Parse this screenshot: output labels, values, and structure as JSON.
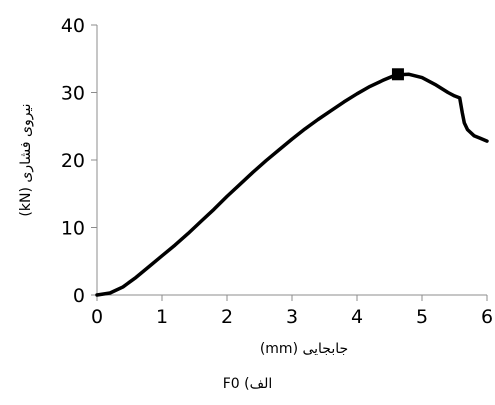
{
  "chart_data": {
    "type": "line",
    "title": "",
    "xlabel": "جابجایی (mm)",
    "ylabel": "نیروی فشاری (kN)",
    "xlim": [
      0,
      6
    ],
    "ylim": [
      0,
      40
    ],
    "x_ticks": [
      "0",
      "1",
      "2",
      "3",
      "4",
      "5",
      "6"
    ],
    "y_ticks": [
      "0",
      "10",
      "20",
      "30",
      "40"
    ],
    "grid": false,
    "legend": "none",
    "series": [
      {
        "color": "#000000",
        "x": [
          0,
          0.2,
          0.4,
          0.6,
          0.8,
          1.0,
          1.2,
          1.4,
          1.6,
          1.8,
          2.0,
          2.2,
          2.4,
          2.6,
          2.8,
          3.0,
          3.2,
          3.4,
          3.6,
          3.8,
          4.0,
          4.2,
          4.4,
          4.6,
          4.8,
          5.0,
          5.2,
          5.4,
          5.5,
          5.58,
          5.62,
          5.65,
          5.7,
          5.8,
          5.9,
          6.0
        ],
        "y": [
          0,
          0.3,
          1.2,
          2.6,
          4.2,
          5.8,
          7.4,
          9.1,
          10.9,
          12.7,
          14.6,
          16.4,
          18.2,
          19.9,
          21.5,
          23.1,
          24.6,
          26.0,
          27.3,
          28.6,
          29.8,
          30.9,
          31.8,
          32.6,
          32.7,
          32.2,
          31.2,
          30.0,
          29.5,
          29.2,
          27.0,
          25.5,
          24.5,
          23.6,
          23.2,
          22.8
        ]
      }
    ],
    "marker": {
      "x": 4.63,
      "y": 32.7,
      "shape": "square"
    }
  },
  "caption": "الف) F0"
}
